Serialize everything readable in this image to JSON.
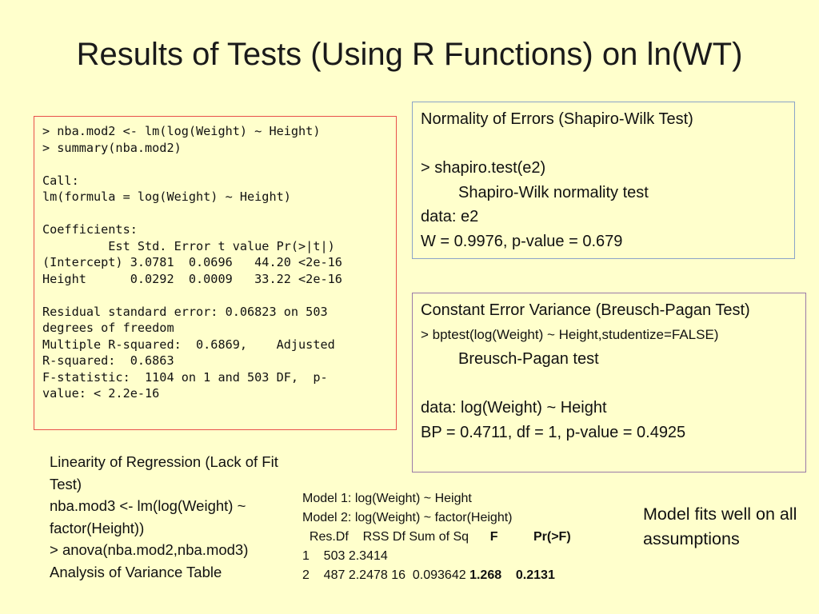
{
  "slide": {
    "title": "Results of Tests (Using R Functions) on ln(WT)"
  },
  "r_output": {
    "lines": [
      "> nba.mod2 <- lm(log(Weight) ~ Height)",
      "> summary(nba.mod2)",
      "",
      "Call:",
      "lm(formula = log(Weight) ~ Height)",
      "",
      "Coefficients:",
      "         Est Std. Error t value Pr(>|t|)",
      "(Intercept) 3.0781  0.0696   44.20 <2e-16",
      "Height      0.0292  0.0009   33.22 <2e-16",
      "",
      "Residual standard error: 0.06823 on 503",
      "degrees of freedom",
      "Multiple R-squared:  0.6869,    Adjusted",
      "R-squared:  0.6863",
      "F-statistic:  1104 on 1 and 503 DF,  p-",
      "value: < 2.2e-16"
    ]
  },
  "normality": {
    "heading": "Normality of Errors  (Shapiro-Wilk Test)",
    "command": "> shapiro.test(e2)",
    "test_name": "Shapiro-Wilk normality test",
    "data_line": "data:  e2",
    "result": "W = 0.9976, p-value = 0.679"
  },
  "breusch_pagan": {
    "heading": "Constant Error Variance (Breusch-Pagan Test)",
    "command": "> bptest(log(Weight) ~ Height,studentize=FALSE)",
    "test_name": "Breusch-Pagan test",
    "data_line": "data:  log(Weight) ~ Height",
    "result": "BP = 0.4711, df = 1, p-value = 0.4925"
  },
  "linearity": {
    "heading": "Linearity of Regression (Lack of Fit Test)",
    "cmd1": " nba.mod3 <- lm(log(Weight) ~ factor(Height))",
    "cmd2": "> anova(nba.mod2,nba.mod3)",
    "table_title": "Analysis of Variance Table"
  },
  "anova": {
    "model1": "Model 1: log(Weight) ~ Height",
    "model2": "Model 2: log(Weight) ~ factor(Height)",
    "header_plain": "  Res.Df    RSS Df Sum of Sq      ",
    "header_F": "F",
    "header_gap": "          ",
    "header_p": "Pr(>F)",
    "row1": "1    503 2.3414",
    "row2_plain": "2    487 2.2478 16  0.093642 ",
    "row2_F": "1.268",
    "row2_gap": "    ",
    "row2_p": "0.2131"
  },
  "conclusion": {
    "text": "Model fits well on all assumptions"
  }
}
